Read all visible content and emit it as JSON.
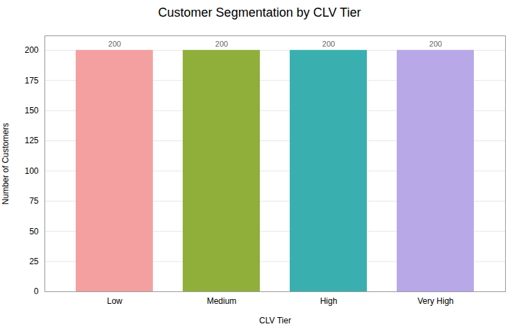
{
  "chart_data": {
    "type": "bar",
    "title": "Customer Segmentation by CLV Tier",
    "categories": [
      "Low",
      "Medium",
      "High",
      "Very High"
    ],
    "values": [
      200,
      200,
      200,
      200
    ],
    "colors": [
      "#F4A0A0",
      "#8FAF3A",
      "#3AAFAF",
      "#B8A8E8"
    ],
    "xlabel": "CLV Tier",
    "ylabel": "Number of Customers",
    "ylim": [
      0,
      212
    ],
    "yticks": [
      0,
      25,
      50,
      75,
      100,
      125,
      150,
      175,
      200
    ],
    "grid": true,
    "data_labels": true
  }
}
